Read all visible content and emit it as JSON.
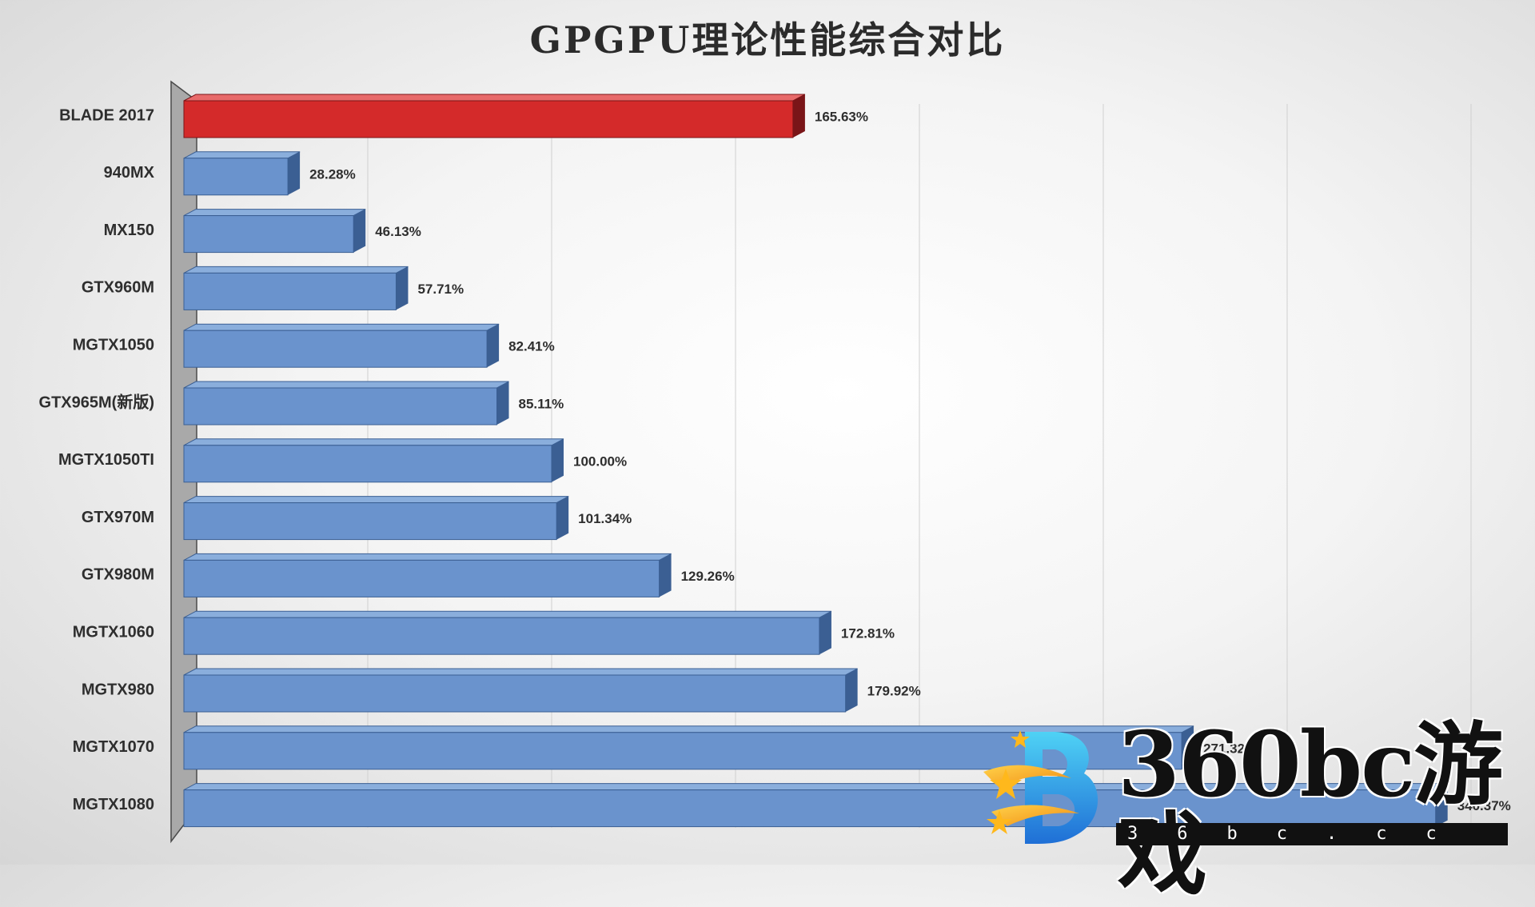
{
  "chart_data": {
    "type": "bar",
    "orientation": "horizontal",
    "title": "GPGPU理论性能综合对比",
    "categories": [
      "BLADE 2017",
      "940MX",
      "MX150",
      "GTX960M",
      "MGTX1050",
      "GTX965M(新版)",
      "MGTX1050TI",
      "GTX970M",
      "GTX980M",
      "MGTX1060",
      "MGTX980",
      "MGTX1070",
      "MGTX1080"
    ],
    "values": [
      165.63,
      28.28,
      46.13,
      57.71,
      82.41,
      85.11,
      100.0,
      101.34,
      129.26,
      172.81,
      179.92,
      271.32,
      340.37
    ],
    "data_labels": [
      "165.63%",
      "28.28%",
      "46.13%",
      "57.71%",
      "82.41%",
      "85.11%",
      "100.00%",
      "101.34%",
      "129.26%",
      "172.81%",
      "179.92%",
      "271.32%",
      "340.37%"
    ],
    "highlight_index": 0,
    "xlim": [
      0,
      350
    ],
    "grid": "vertical",
    "legend": "none",
    "colors": {
      "highlight_front": "#d42a2a",
      "highlight_side": "#7a1518",
      "bar_front": "#6a93cd",
      "bar_side": "#3b5f93",
      "bar_top": "#8aaedc",
      "wall": "#a9a9a9",
      "grid": "#d0d0d0",
      "label": "#2e2e2e"
    }
  },
  "watermark": {
    "logo_icon": "360bc-star-b-logo-icon",
    "text": "360bc游戏",
    "subtext": "36bc.cc"
  }
}
